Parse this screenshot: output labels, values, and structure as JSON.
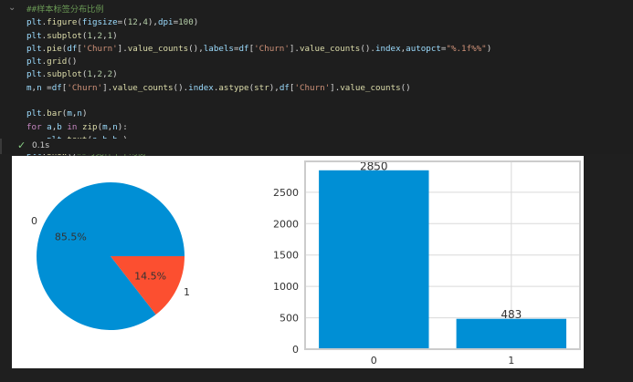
{
  "editor": {
    "code_lines": [
      [
        {
          "t": "comment",
          "v": "##样本标签分布比例"
        }
      ],
      [
        {
          "t": "var",
          "v": "plt"
        },
        {
          "t": "op",
          "v": "."
        },
        {
          "t": "fn",
          "v": "figure"
        },
        {
          "t": "op",
          "v": "("
        },
        {
          "t": "var",
          "v": "figsize"
        },
        {
          "t": "op",
          "v": "=("
        },
        {
          "t": "num",
          "v": "12"
        },
        {
          "t": "op",
          "v": ","
        },
        {
          "t": "num",
          "v": "4"
        },
        {
          "t": "op",
          "v": "),"
        },
        {
          "t": "var",
          "v": "dpi"
        },
        {
          "t": "op",
          "v": "="
        },
        {
          "t": "num",
          "v": "100"
        },
        {
          "t": "op",
          "v": ")"
        }
      ],
      [
        {
          "t": "var",
          "v": "plt"
        },
        {
          "t": "op",
          "v": "."
        },
        {
          "t": "fn",
          "v": "subplot"
        },
        {
          "t": "op",
          "v": "("
        },
        {
          "t": "num",
          "v": "1"
        },
        {
          "t": "op",
          "v": ","
        },
        {
          "t": "num",
          "v": "2"
        },
        {
          "t": "op",
          "v": ","
        },
        {
          "t": "num",
          "v": "1"
        },
        {
          "t": "op",
          "v": ")"
        }
      ],
      [
        {
          "t": "var",
          "v": "plt"
        },
        {
          "t": "op",
          "v": "."
        },
        {
          "t": "fn",
          "v": "pie"
        },
        {
          "t": "op",
          "v": "("
        },
        {
          "t": "var",
          "v": "df"
        },
        {
          "t": "op",
          "v": "["
        },
        {
          "t": "str",
          "v": "'Churn'"
        },
        {
          "t": "op",
          "v": "]."
        },
        {
          "t": "fn",
          "v": "value_counts"
        },
        {
          "t": "op",
          "v": "(),"
        },
        {
          "t": "var",
          "v": "labels"
        },
        {
          "t": "op",
          "v": "="
        },
        {
          "t": "var",
          "v": "df"
        },
        {
          "t": "op",
          "v": "["
        },
        {
          "t": "str",
          "v": "'Churn'"
        },
        {
          "t": "op",
          "v": "]."
        },
        {
          "t": "fn",
          "v": "value_counts"
        },
        {
          "t": "op",
          "v": "()."
        },
        {
          "t": "var",
          "v": "index"
        },
        {
          "t": "op",
          "v": ","
        },
        {
          "t": "var",
          "v": "autopct"
        },
        {
          "t": "op",
          "v": "="
        },
        {
          "t": "str",
          "v": "\"%.1f%%\""
        },
        {
          "t": "op",
          "v": ")"
        }
      ],
      [
        {
          "t": "var",
          "v": "plt"
        },
        {
          "t": "op",
          "v": "."
        },
        {
          "t": "fn",
          "v": "grid"
        },
        {
          "t": "op",
          "v": "()"
        }
      ],
      [
        {
          "t": "var",
          "v": "plt"
        },
        {
          "t": "op",
          "v": "."
        },
        {
          "t": "fn",
          "v": "subplot"
        },
        {
          "t": "op",
          "v": "("
        },
        {
          "t": "num",
          "v": "1"
        },
        {
          "t": "op",
          "v": ","
        },
        {
          "t": "num",
          "v": "2"
        },
        {
          "t": "op",
          "v": ","
        },
        {
          "t": "num",
          "v": "2"
        },
        {
          "t": "op",
          "v": ")"
        }
      ],
      [
        {
          "t": "var",
          "v": "m"
        },
        {
          "t": "op",
          "v": ","
        },
        {
          "t": "var",
          "v": "n"
        },
        {
          "t": "op",
          "v": " ="
        },
        {
          "t": "var",
          "v": "df"
        },
        {
          "t": "op",
          "v": "["
        },
        {
          "t": "str",
          "v": "'Churn'"
        },
        {
          "t": "op",
          "v": "]."
        },
        {
          "t": "fn",
          "v": "value_counts"
        },
        {
          "t": "op",
          "v": "()."
        },
        {
          "t": "var",
          "v": "index"
        },
        {
          "t": "op",
          "v": "."
        },
        {
          "t": "fn",
          "v": "astype"
        },
        {
          "t": "op",
          "v": "("
        },
        {
          "t": "fn",
          "v": "str"
        },
        {
          "t": "op",
          "v": "),"
        },
        {
          "t": "var",
          "v": "df"
        },
        {
          "t": "op",
          "v": "["
        },
        {
          "t": "str",
          "v": "'Churn'"
        },
        {
          "t": "op",
          "v": "]."
        },
        {
          "t": "fn",
          "v": "value_counts"
        },
        {
          "t": "op",
          "v": "()"
        }
      ],
      [],
      [
        {
          "t": "var",
          "v": "plt"
        },
        {
          "t": "op",
          "v": "."
        },
        {
          "t": "fn",
          "v": "bar"
        },
        {
          "t": "op",
          "v": "("
        },
        {
          "t": "var",
          "v": "m"
        },
        {
          "t": "op",
          "v": ","
        },
        {
          "t": "var",
          "v": "n"
        },
        {
          "t": "op",
          "v": ")"
        }
      ],
      [
        {
          "t": "kw",
          "v": "for"
        },
        {
          "t": "op",
          "v": " "
        },
        {
          "t": "var",
          "v": "a"
        },
        {
          "t": "op",
          "v": ","
        },
        {
          "t": "var",
          "v": "b"
        },
        {
          "t": "op",
          "v": " "
        },
        {
          "t": "kw",
          "v": "in"
        },
        {
          "t": "op",
          "v": " "
        },
        {
          "t": "fn",
          "v": "zip"
        },
        {
          "t": "op",
          "v": "("
        },
        {
          "t": "var",
          "v": "m"
        },
        {
          "t": "op",
          "v": ","
        },
        {
          "t": "var",
          "v": "n"
        },
        {
          "t": "op",
          "v": "):"
        }
      ],
      [
        {
          "t": "op",
          "v": "    "
        },
        {
          "t": "var",
          "v": "plt"
        },
        {
          "t": "op",
          "v": "."
        },
        {
          "t": "fn",
          "v": "text"
        },
        {
          "t": "op",
          "v": "("
        },
        {
          "t": "var",
          "v": "a"
        },
        {
          "t": "op",
          "v": ","
        },
        {
          "t": "var",
          "v": "b"
        },
        {
          "t": "op",
          "v": ","
        },
        {
          "t": "var",
          "v": "b"
        },
        {
          "t": "op",
          "v": " )"
        }
      ],
      [
        {
          "t": "var",
          "v": "plt"
        },
        {
          "t": "op",
          "v": "."
        },
        {
          "t": "fn",
          "v": "show"
        },
        {
          "t": "op",
          "v": "()"
        },
        {
          "t": "comment",
          "v": "##可见样本不均衡"
        }
      ]
    ]
  },
  "status": {
    "check_icon": "check-icon",
    "exec_time": "0.1s"
  },
  "colors": {
    "blue": "#008fd5",
    "red": "#fc4f30"
  },
  "chart_data": [
    {
      "type": "pie",
      "labels": [
        "0",
        "1"
      ],
      "values": [
        85.5,
        14.5
      ],
      "autopct_labels": [
        "85.5%",
        "14.5%"
      ],
      "colors": [
        "#008fd5",
        "#fc4f30"
      ]
    },
    {
      "type": "bar",
      "categories": [
        "0",
        "1"
      ],
      "values": [
        2850,
        483
      ],
      "data_labels": [
        "2850",
        "483"
      ],
      "yticks": [
        "0",
        "500",
        "1000",
        "1500",
        "2000",
        "2500"
      ],
      "ylim": [
        0,
        2992
      ],
      "grid": true,
      "color": "#008fd5"
    }
  ]
}
